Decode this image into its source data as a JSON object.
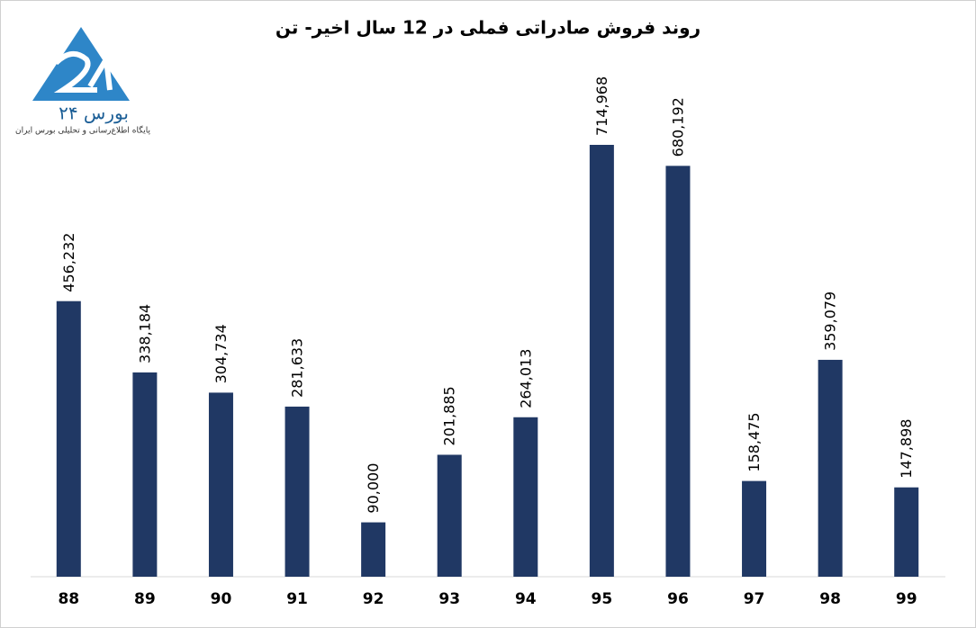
{
  "chart_data": {
    "type": "bar",
    "title": "روند فروش صادراتی فملی در 12 سال اخیر- تن",
    "logo": {
      "name": "بورس ۲۴",
      "tagline": "پایگاه اطلاع‌رسانی و تحلیلی بورس ایران"
    },
    "categories": [
      "88",
      "89",
      "90",
      "91",
      "92",
      "93",
      "94",
      "95",
      "96",
      "97",
      "98",
      "99"
    ],
    "values": [
      456232,
      338184,
      304734,
      281633,
      90000,
      201885,
      264013,
      714968,
      680192,
      158475,
      359079,
      147898
    ],
    "value_labels": [
      "456,232",
      "338,184",
      "304,734",
      "281,633",
      "90,000",
      "201,885",
      "264,013",
      "714,968",
      "680,192",
      "158,475",
      "359,079",
      "147,898"
    ],
    "color": "#203864"
  }
}
